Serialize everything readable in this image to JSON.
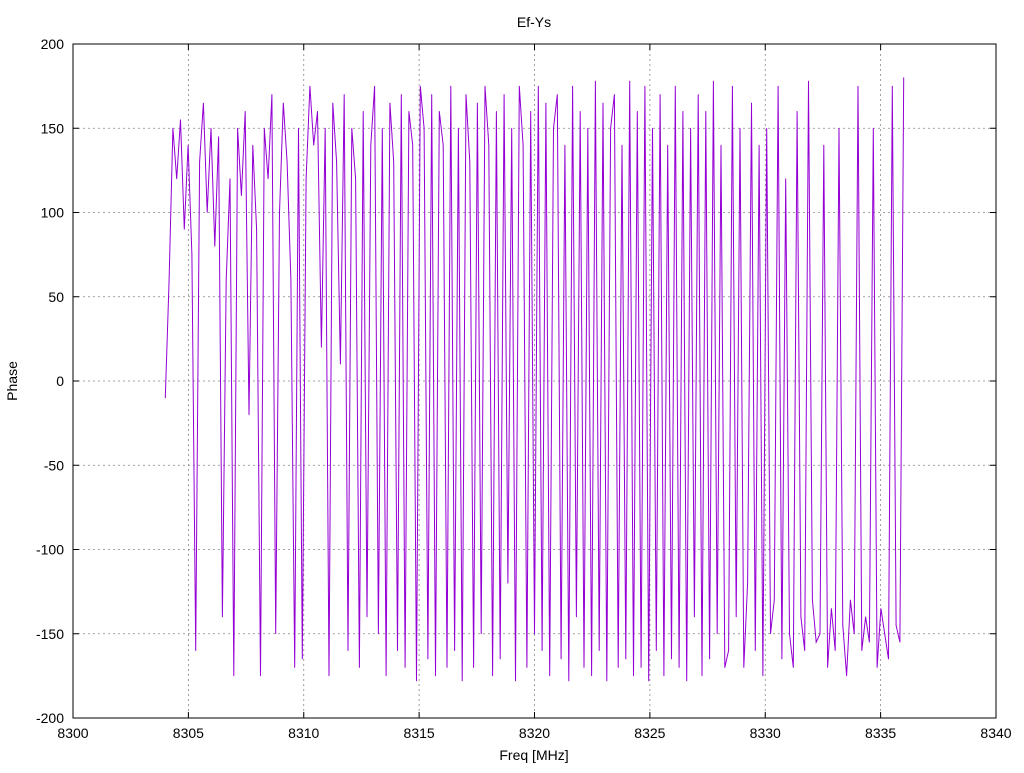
{
  "chart_data": {
    "type": "line",
    "title": "Ef-Ys",
    "xlabel": "Freq [MHz]",
    "ylabel": "Phase",
    "xlim": [
      8300,
      8340
    ],
    "ylim": [
      -200,
      200
    ],
    "xticks": [
      8300,
      8305,
      8310,
      8315,
      8320,
      8325,
      8330,
      8335,
      8340
    ],
    "yticks": [
      -200,
      -150,
      -100,
      -50,
      0,
      50,
      100,
      150,
      200
    ],
    "grid": true,
    "legend": "none",
    "series": [
      {
        "name": "Ef-Ys",
        "color": "#9400d3",
        "x_first": 8304.0,
        "x_last": 8336.0,
        "values": [
          -10,
          60,
          150,
          120,
          155,
          90,
          140,
          75,
          -160,
          130,
          165,
          100,
          150,
          80,
          145,
          -140,
          60,
          120,
          -175,
          150,
          110,
          160,
          -20,
          140,
          90,
          -175,
          150,
          120,
          170,
          -150,
          100,
          165,
          130,
          60,
          -170,
          150,
          -165,
          120,
          175,
          140,
          160,
          20,
          150,
          -175,
          165,
          130,
          10,
          170,
          -160,
          150,
          120,
          -170,
          160,
          -140,
          140,
          175,
          -150,
          150,
          -175,
          165,
          130,
          -160,
          170,
          -170,
          160,
          140,
          -178,
          175,
          150,
          -165,
          170,
          -175,
          160,
          140,
          -170,
          175,
          -160,
          150,
          -178,
          170,
          130,
          -170,
          165,
          -150,
          175,
          140,
          -175,
          160,
          -165,
          170,
          -120,
          150,
          -178,
          175,
          140,
          -170,
          160,
          -150,
          175,
          -160,
          165,
          -175,
          150,
          170,
          -165,
          140,
          -178,
          175,
          -140,
          160,
          -170,
          150,
          -175,
          178,
          -160,
          165,
          -178,
          150,
          170,
          -170,
          140,
          -165,
          178,
          -175,
          160,
          -170,
          175,
          -178,
          150,
          -160,
          170,
          -175,
          140,
          -165,
          175,
          -170,
          160,
          -178,
          150,
          -140,
          170,
          -175,
          160,
          -165,
          178,
          -150,
          140,
          -170,
          -160,
          175,
          -140,
          150,
          -170,
          -120,
          165,
          -160,
          140,
          -175,
          150,
          -150,
          -130,
          175,
          -165,
          120,
          -150,
          -170,
          160,
          -140,
          -160,
          178,
          -130,
          -155,
          -150,
          140,
          -170,
          -135,
          -160,
          150,
          -145,
          -175,
          -130,
          -150,
          175,
          -160,
          -140,
          -155,
          150,
          -170,
          -135,
          -150,
          -165,
          175,
          -145,
          -155,
          180
        ]
      }
    ]
  }
}
